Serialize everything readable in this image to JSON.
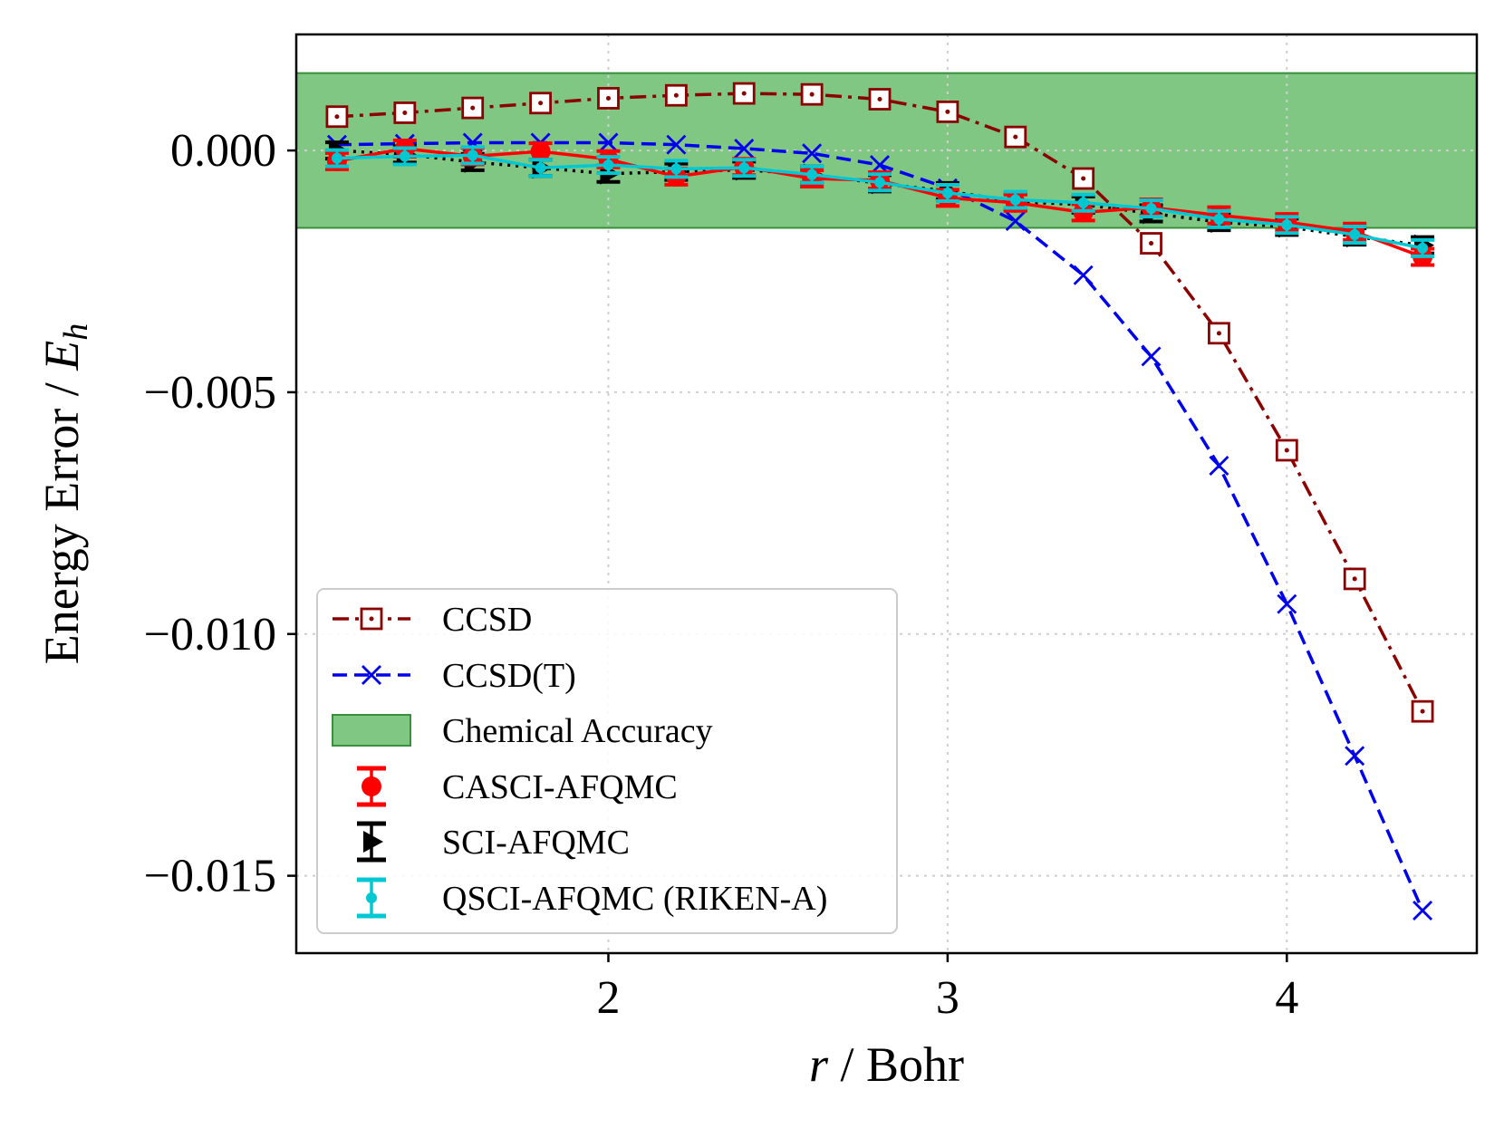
{
  "chart_data": {
    "type": "line",
    "title": "",
    "xlabel": {
      "italic": "r",
      "rest": " / Bohr"
    },
    "ylabel": {
      "prefix": "Energy Error / ",
      "italic": "E",
      "sub": "h"
    },
    "xlim": [
      1.08,
      4.56
    ],
    "ylim": [
      -0.0166,
      0.0024
    ],
    "xticks": [
      2,
      3,
      4
    ],
    "xtick_labels": [
      "2",
      "3",
      "4"
    ],
    "yticks": [
      0.0,
      -0.005,
      -0.01,
      -0.015
    ],
    "ytick_labels": [
      "0.000",
      "−0.005",
      "−0.010",
      "−0.015"
    ],
    "grid": true,
    "legend_position": "lower-left",
    "band": {
      "name": "Chemical Accuracy",
      "ymin": -0.0016,
      "ymax": 0.0016,
      "color": "#4caf50"
    },
    "x": [
      1.2,
      1.4,
      1.6,
      1.8,
      2.0,
      2.2,
      2.4,
      2.6,
      2.8,
      3.0,
      3.2,
      3.4,
      3.6,
      3.8,
      4.0,
      4.2,
      4.4
    ],
    "series": [
      {
        "name": "CCSD",
        "color": "#8b0000",
        "style": "dashdot",
        "marker": "square",
        "values": [
          0.0007,
          0.00078,
          0.00088,
          0.00098,
          0.00108,
          0.00114,
          0.00118,
          0.00116,
          0.00106,
          0.0008,
          0.00028,
          -0.00058,
          -0.00192,
          -0.00378,
          -0.0062,
          -0.00886,
          -0.0116
        ]
      },
      {
        "name": "CCSD(T)",
        "color": "#0000ee",
        "style": "dashed",
        "marker": "x",
        "values": [
          0.00012,
          0.00014,
          0.00016,
          0.00016,
          0.00016,
          0.00012,
          4e-05,
          -6e-05,
          -0.0003,
          -0.00078,
          -0.00146,
          -0.00258,
          -0.00426,
          -0.00652,
          -0.00938,
          -0.01252,
          -0.01572
        ]
      },
      {
        "name": "CASCI-AFQMC",
        "color": "#ff0000",
        "style": "solid",
        "marker": "circle",
        "values": [
          -0.00022,
          4e-05,
          -0.00012,
          -2e-05,
          -0.00018,
          -0.00054,
          -0.00034,
          -0.00058,
          -0.00062,
          -0.00098,
          -0.00108,
          -0.00128,
          -0.00118,
          -0.00134,
          -0.00148,
          -0.00168,
          -0.0022
        ]
      },
      {
        "name": "SCI-AFQMC",
        "color": "#000000",
        "style": "dotted",
        "marker": "triangle-right",
        "values": [
          0.0,
          -8e-05,
          -0.00024,
          -0.00036,
          -0.00048,
          -0.00044,
          -0.0004,
          -0.0005,
          -0.00068,
          -0.00084,
          -0.00106,
          -0.00112,
          -0.0013,
          -0.00148,
          -0.00158,
          -0.00178,
          -0.00196
        ]
      },
      {
        "name": "QSCI-AFQMC (RIKEN-A)",
        "color": "#00c8d2",
        "style": "solid",
        "marker": "dot",
        "values": [
          -0.00016,
          -0.00012,
          -0.0001,
          -0.00036,
          -0.0003,
          -0.00038,
          -0.00036,
          -0.0005,
          -0.00066,
          -0.00088,
          -0.00102,
          -0.00108,
          -0.0012,
          -0.00142,
          -0.00154,
          -0.00174,
          -0.00202
        ]
      }
    ],
    "legend": [
      "CCSD",
      "CCSD(T)",
      "Chemical Accuracy",
      "CASCI-AFQMC",
      "SCI-AFQMC",
      "QSCI-AFQMC (RIKEN-A)"
    ]
  }
}
